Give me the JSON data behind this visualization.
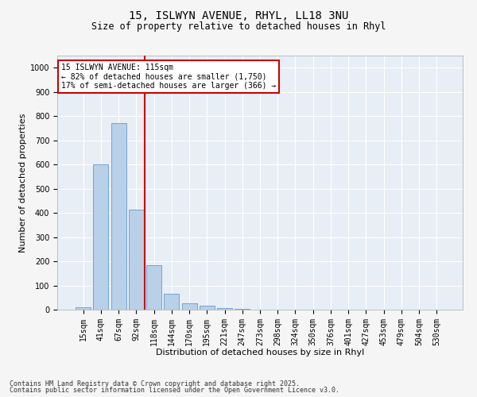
{
  "title_line1": "15, ISLWYN AVENUE, RHYL, LL18 3NU",
  "title_line2": "Size of property relative to detached houses in Rhyl",
  "xlabel": "Distribution of detached houses by size in Rhyl",
  "ylabel": "Number of detached properties",
  "categories": [
    "15sqm",
    "41sqm",
    "67sqm",
    "92sqm",
    "118sqm",
    "144sqm",
    "170sqm",
    "195sqm",
    "221sqm",
    "247sqm",
    "273sqm",
    "298sqm",
    "324sqm",
    "350sqm",
    "376sqm",
    "401sqm",
    "427sqm",
    "453sqm",
    "479sqm",
    "504sqm",
    "530sqm"
  ],
  "values": [
    10,
    600,
    770,
    415,
    185,
    65,
    25,
    15,
    8,
    3,
    0,
    0,
    0,
    0,
    0,
    0,
    0,
    0,
    0,
    0,
    0
  ],
  "bar_color": "#b8d0e8",
  "bar_edge_color": "#6699cc",
  "vline_color": "#cc0000",
  "vline_x": 3.5,
  "annotation_text_line1": "15 ISLWYN AVENUE: 115sqm",
  "annotation_text_line2": "← 82% of detached houses are smaller (1,750)",
  "annotation_text_line3": "17% of semi-detached houses are larger (366) →",
  "annotation_box_color": "#cc0000",
  "ylim_max": 1050,
  "yticks": [
    0,
    100,
    200,
    300,
    400,
    500,
    600,
    700,
    800,
    900,
    1000
  ],
  "fig_bg": "#f5f5f5",
  "ax_bg": "#e8eef5",
  "grid_color": "#ffffff",
  "title_fontsize": 10,
  "subtitle_fontsize": 8.5,
  "axis_label_fontsize": 8,
  "tick_fontsize": 7,
  "annotation_fontsize": 7,
  "footer_fontsize": 6,
  "footer_line1": "Contains HM Land Registry data © Crown copyright and database right 2025.",
  "footer_line2": "Contains public sector information licensed under the Open Government Licence v3.0."
}
